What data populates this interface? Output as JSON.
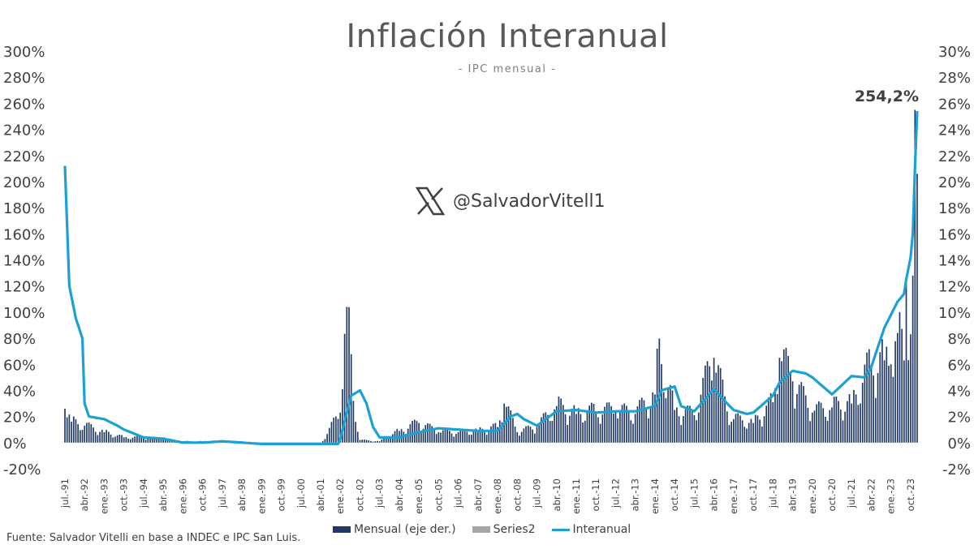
{
  "chart_data": {
    "type": "bar+line",
    "title": "Inflación Interanual",
    "subtitle": "- IPC mensual -",
    "source": "Fuente: Salvador Vitelli en base a INDEC e IPC San Luis.",
    "watermark": "@SalvadorVitell1",
    "annotation": "254,2%",
    "y_left": {
      "ticks": [
        "300%",
        "280%",
        "260%",
        "240%",
        "220%",
        "200%",
        "180%",
        "160%",
        "140%",
        "120%",
        "100%",
        "80%",
        "60%",
        "40%",
        "20%",
        "0%",
        "-20%"
      ],
      "min": -20,
      "max": 300
    },
    "y_right": {
      "ticks": [
        "30%",
        "28%",
        "26%",
        "24%",
        "22%",
        "20%",
        "18%",
        "16%",
        "14%",
        "12%",
        "10%",
        "8%",
        "6%",
        "4%",
        "2%",
        "0%",
        "-2%"
      ],
      "min": -2,
      "max": 30
    },
    "x_labels": [
      "jul.-91",
      "abr.-92",
      "ene.-93",
      "oct.-93",
      "jul.-94",
      "abr.-95",
      "ene.-96",
      "oct.-96",
      "jul.-97",
      "abr.-98",
      "ene.-99",
      "oct.-99",
      "jul.-00",
      "abr.-01",
      "ene.-02",
      "oct.-02",
      "jul.-03",
      "abr.-04",
      "ene.-05",
      "oct.-05",
      "jul.-06",
      "abr.-07",
      "ene.-08",
      "oct.-08",
      "jul.-09",
      "abr.-10",
      "ene.-11",
      "oct.-11",
      "jul.-12",
      "abr.-13",
      "ene.-14",
      "oct.-14",
      "jul.-15",
      "abr.-16",
      "ene.-17",
      "oct.-17",
      "jul.-18",
      "abr.-19",
      "ene.-20",
      "oct.-20",
      "jul.-21",
      "abr.-22",
      "ene.-23",
      "oct.-23"
    ],
    "legend": [
      "Mensual (eje der.)",
      "Series2",
      "Interanual"
    ],
    "colors": {
      "mensual": "#1f3864",
      "series2": "#a6a6a6",
      "interanual": "#1ba1d6"
    },
    "mensual_anchors": [
      [
        "jul.-91",
        2.6
      ],
      [
        "oct.-91",
        1.6
      ],
      [
        "abr.-92",
        1.3
      ],
      [
        "ene.-93",
        0.8
      ],
      [
        "oct.-93",
        0.4
      ],
      [
        "jul.-94",
        0.4
      ],
      [
        "abr.-95",
        0.3
      ],
      [
        "ene.-96",
        0.1
      ],
      [
        "oct.-96",
        0.1
      ],
      [
        "jul.-97",
        0.1
      ],
      [
        "abr.-98",
        0.1
      ],
      [
        "ene.-99",
        -0.1
      ],
      [
        "oct.-99",
        0.0
      ],
      [
        "jul.-00",
        0.0
      ],
      [
        "abr.-01",
        -0.1
      ],
      [
        "ene.-02",
        2.3
      ],
      [
        "abr.-02",
        10.4
      ],
      [
        "jul.-02",
        3.2
      ],
      [
        "oct.-02",
        0.2
      ],
      [
        "jul.-03",
        0.1
      ],
      [
        "abr.-04",
        0.9
      ],
      [
        "ene.-05",
        1.5
      ],
      [
        "oct.-05",
        0.8
      ],
      [
        "jul.-06",
        0.8
      ],
      [
        "abr.-07",
        0.9
      ],
      [
        "ene.-08",
        1.2
      ],
      [
        "apr.-08",
        3.0
      ],
      [
        "oct.-08",
        0.8
      ],
      [
        "jul.-09",
        1.2
      ],
      [
        "abr.-10",
        2.8
      ],
      [
        "ene.-11",
        2.2
      ],
      [
        "oct.-11",
        2.4
      ],
      [
        "jul.-12",
        2.4
      ],
      [
        "abr.-13",
        2.2
      ],
      [
        "ene.-14",
        3.7
      ],
      [
        "feb.-14",
        7.2
      ],
      [
        "oct.-14",
        2.5
      ],
      [
        "jul.-15",
        2.1
      ],
      [
        "abr.-16",
        6.5
      ],
      [
        "oct.-16",
        2.4
      ],
      [
        "ene.-17",
        1.8
      ],
      [
        "oct.-17",
        1.5
      ],
      [
        "jul.-18",
        3.1
      ],
      [
        "oct.-18",
        6.5
      ],
      [
        "abr.-19",
        4.7
      ],
      [
        "ene.-20",
        2.3
      ],
      [
        "oct.-20",
        2.7
      ],
      [
        "jul.-21",
        3.0
      ],
      [
        "abr.-22",
        6.0
      ],
      [
        "oct.-22",
        6.3
      ],
      [
        "ene.-23",
        6.0
      ],
      [
        "abr.-23",
        8.4
      ],
      [
        "jul.-23",
        6.3
      ],
      [
        "ago.-23",
        12.4
      ],
      [
        "oct.-23",
        8.3
      ],
      [
        "nov.-23",
        12.8
      ],
      [
        "dic.-23",
        25.5
      ],
      [
        "ene.-24",
        20.6
      ]
    ],
    "interanual_anchors": [
      [
        "jul.-91",
        212
      ],
      [
        "sep.-91",
        120
      ],
      [
        "dic.-91",
        95
      ],
      [
        "mar.-92",
        80
      ],
      [
        "abr.-92",
        30
      ],
      [
        "jun.-92",
        20
      ],
      [
        "ene.-93",
        18
      ],
      [
        "jul.-93",
        13
      ],
      [
        "oct.-93",
        10
      ],
      [
        "jul.-94",
        4
      ],
      [
        "abr.-95",
        3
      ],
      [
        "ene.-96",
        0
      ],
      [
        "oct.-96",
        0
      ],
      [
        "jul.-97",
        1
      ],
      [
        "abr.-98",
        0
      ],
      [
        "ene.-99",
        -1
      ],
      [
        "oct.-99",
        -1
      ],
      [
        "jul.-00",
        -1
      ],
      [
        "abr.-01",
        -1
      ],
      [
        "dic.-01",
        -1
      ],
      [
        "ene.-02",
        3
      ],
      [
        "jun.-02",
        36
      ],
      [
        "oct.-02",
        40
      ],
      [
        "ene.-03",
        30
      ],
      [
        "abr.-03",
        12
      ],
      [
        "jul.-03",
        4
      ],
      [
        "abr.-04",
        4
      ],
      [
        "ene.-05",
        8
      ],
      [
        "oct.-05",
        11
      ],
      [
        "jul.-06",
        10
      ],
      [
        "abr.-07",
        9
      ],
      [
        "ene.-08",
        9
      ],
      [
        "jul.-08",
        20
      ],
      [
        "oct.-08",
        22
      ],
      [
        "ene.-09",
        18
      ],
      [
        "jul.-09",
        13
      ],
      [
        "abr.-10",
        24
      ],
      [
        "ene.-11",
        25
      ],
      [
        "oct.-11",
        23
      ],
      [
        "jul.-12",
        24
      ],
      [
        "abr.-13",
        24
      ],
      [
        "ene.-14",
        28
      ],
      [
        "abr.-14",
        40
      ],
      [
        "oct.-14",
        43
      ],
      [
        "ene.-15",
        28
      ],
      [
        "jul.-15",
        24
      ],
      [
        "abr.-16",
        41
      ],
      [
        "oct.-16",
        30
      ],
      [
        "ene.-17",
        25
      ],
      [
        "jul.-17",
        22
      ],
      [
        "oct.-17",
        23
      ],
      [
        "jul.-18",
        36
      ],
      [
        "oct.-18",
        46
      ],
      [
        "abr.-19",
        55
      ],
      [
        "oct.-19",
        53
      ],
      [
        "ene.-20",
        50
      ],
      [
        "oct.-20",
        37
      ],
      [
        "jul.-21",
        51
      ],
      [
        "ene.-22",
        50
      ],
      [
        "abr.-22",
        58
      ],
      [
        "oct.-22",
        88
      ],
      [
        "ene.-23",
        98
      ],
      [
        "abr.-23",
        108
      ],
      [
        "jul.-23",
        114
      ],
      [
        "ago.-23",
        125
      ],
      [
        "oct.-23",
        142
      ],
      [
        "nov.-23",
        160
      ],
      [
        "dic.-23",
        211
      ],
      [
        "ene.-24",
        254
      ]
    ]
  }
}
